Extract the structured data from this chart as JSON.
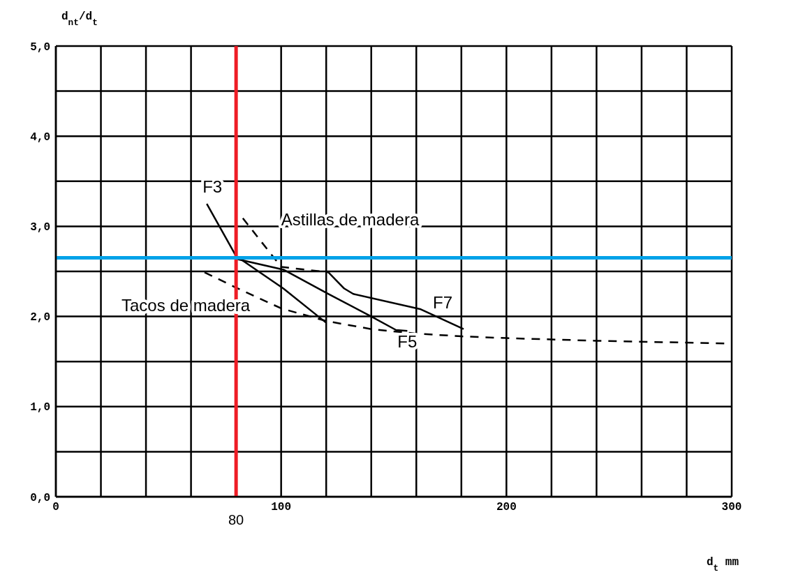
{
  "chart_data": {
    "type": "line",
    "xlabel": "d$_{t}$ mm",
    "ylabel": "d$_{nt}$/d$_{t}$",
    "xlim": [
      0,
      300
    ],
    "ylim": [
      0,
      5
    ],
    "xticks": [
      {
        "value": 0,
        "label": "0"
      },
      {
        "value": 20,
        "label": null
      },
      {
        "value": 40,
        "label": null
      },
      {
        "value": 60,
        "label": null
      },
      {
        "value": 80,
        "label": null
      },
      {
        "value": 100,
        "label": "100"
      },
      {
        "value": 120,
        "label": null
      },
      {
        "value": 140,
        "label": null
      },
      {
        "value": 160,
        "label": null
      },
      {
        "value": 180,
        "label": null
      },
      {
        "value": 200,
        "label": "200"
      },
      {
        "value": 220,
        "label": null
      },
      {
        "value": 240,
        "label": null
      },
      {
        "value": 260,
        "label": null
      },
      {
        "value": 280,
        "label": null
      },
      {
        "value": 300,
        "label": "300"
      }
    ],
    "yticks": [
      {
        "value": 0,
        "label": "0,0"
      },
      {
        "value": 0.5,
        "label": null
      },
      {
        "value": 1,
        "label": "1,0"
      },
      {
        "value": 1.5,
        "label": null
      },
      {
        "value": 2,
        "label": "2,0"
      },
      {
        "value": 2.5,
        "label": null
      },
      {
        "value": 3,
        "label": "3,0"
      },
      {
        "value": 3.5,
        "label": null
      },
      {
        "value": 4,
        "label": "4,0"
      },
      {
        "value": 4.5,
        "label": null
      },
      {
        "value": 5,
        "label": "5,0"
      }
    ],
    "grid": true,
    "legend": false,
    "marker": "none",
    "series": [
      {
        "name": "F3",
        "color": "#000000",
        "line_style": "solid",
        "x": [
          67,
          80,
          101,
          120
        ],
        "values": [
          3.25,
          2.67,
          2.31,
          1.93
        ]
      },
      {
        "name": "F5",
        "color": "#000000",
        "line_style": "solid",
        "x": [
          80,
          101,
          121,
          140,
          151,
          156
        ],
        "values": [
          2.64,
          2.52,
          2.25,
          2.0,
          1.85,
          1.84
        ]
      },
      {
        "name": "F7",
        "color": "#000000",
        "line_style": "solid",
        "x": [
          121,
          128,
          132,
          162,
          181
        ],
        "values": [
          2.49,
          2.31,
          2.25,
          2.08,
          1.86
        ]
      },
      {
        "name": "Astillas de madera",
        "color": "#000000",
        "line_style": "dashed",
        "x": [
          83,
          100,
          121
        ],
        "values": [
          3.09,
          2.55,
          2.49
        ]
      },
      {
        "name": "Tacos de madera",
        "color": "#000000",
        "line_style": "dashed",
        "x": [
          66,
          80,
          100,
          120,
          140,
          160,
          180,
          200,
          240,
          300
        ],
        "values": [
          2.49,
          2.32,
          2.09,
          1.95,
          1.86,
          1.81,
          1.78,
          1.76,
          1.73,
          1.7
        ]
      }
    ],
    "ref_lines": [
      {
        "axis": "x",
        "value": 80,
        "label": "80",
        "color": "#ee1c25"
      },
      {
        "axis": "y",
        "value": 2.65,
        "color": "#00a2e8"
      }
    ]
  }
}
